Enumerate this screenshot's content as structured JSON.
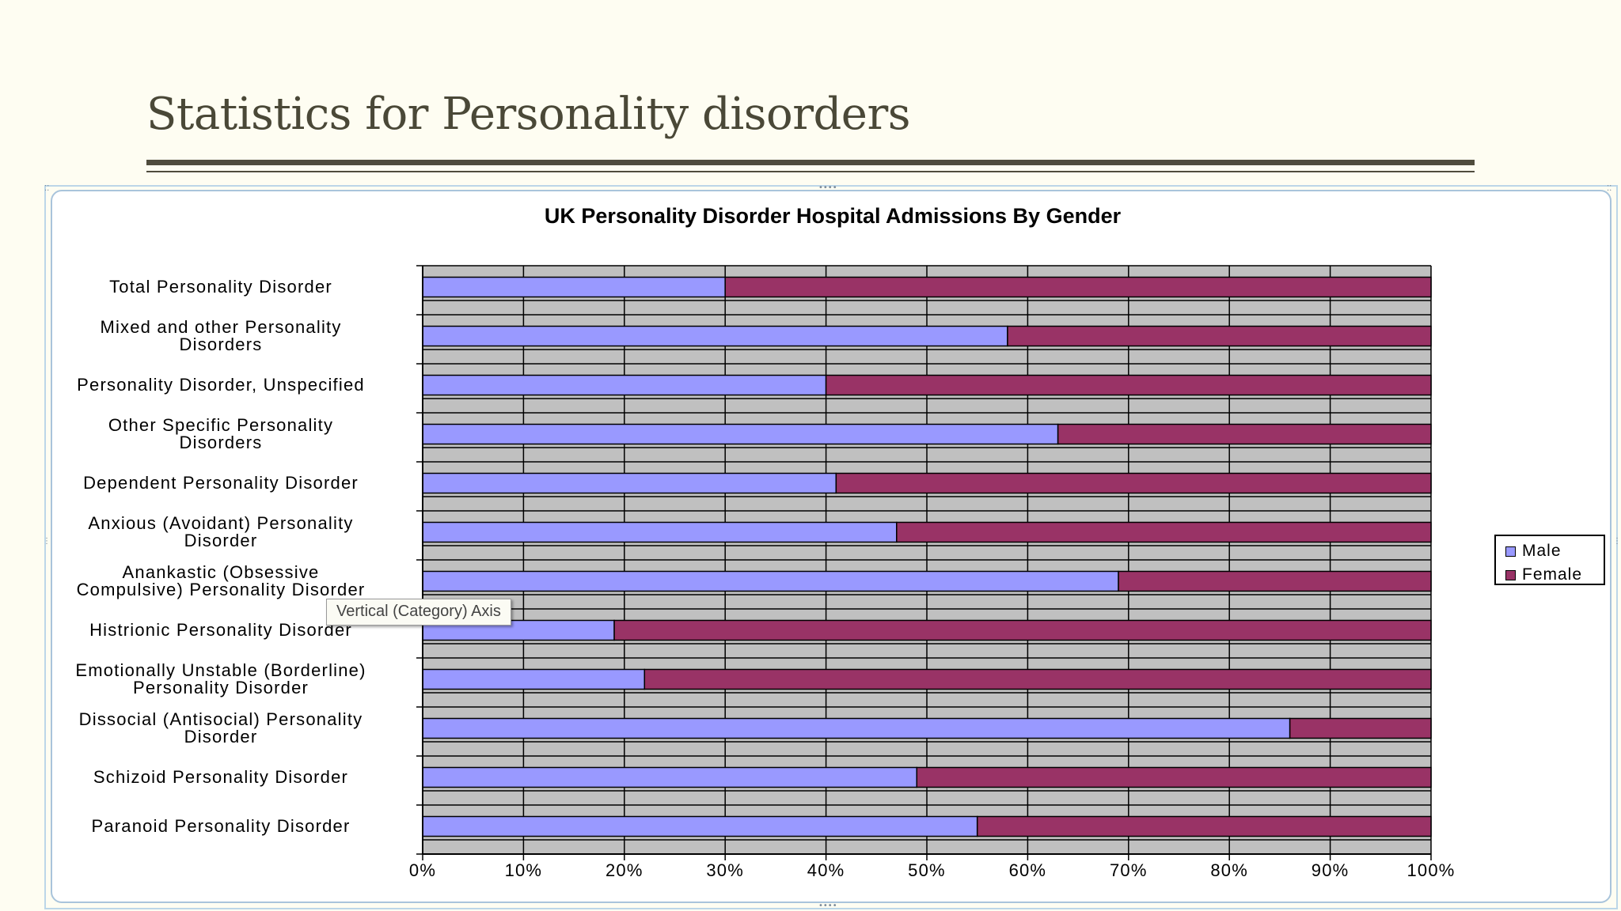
{
  "slide": {
    "title": "Statistics for Personality disorders"
  },
  "tooltip": {
    "text": "Vertical (Category) Axis"
  },
  "legend": {
    "items": [
      {
        "label": "Male",
        "color": "#9999ff"
      },
      {
        "label": "Female",
        "color": "#993366"
      }
    ]
  },
  "colors": {
    "plot_background": "#c0c0c0",
    "gridline": "#000000"
  },
  "chart_data": {
    "type": "bar",
    "orientation": "horizontal",
    "stacked": "percent",
    "title": "UK Personality Disorder Hospital Admissions  By Gender",
    "xlabel": "",
    "ylabel": "",
    "xlim": [
      0,
      100
    ],
    "x_ticks": [
      "0%",
      "10%",
      "20%",
      "30%",
      "40%",
      "50%",
      "60%",
      "70%",
      "80%",
      "90%",
      "100%"
    ],
    "grid": true,
    "legend_position": "right",
    "categories": [
      [
        "Total Personality Disorder"
      ],
      [
        "Mixed and other Personality",
        "Disorders"
      ],
      [
        "Personality Disorder, Unspecified"
      ],
      [
        "Other Specific Personality",
        "Disorders"
      ],
      [
        "Dependent Personality Disorder"
      ],
      [
        "Anxious (Avoidant) Personality",
        "Disorder"
      ],
      [
        "Anankastic (Obsessive",
        "Compulsive) Personality Disorder"
      ],
      [
        "Histrionic Personality Disorder"
      ],
      [
        "Emotionally Unstable (Borderline)",
        "Personality Disorder"
      ],
      [
        "Dissocial (Antisocial) Personality",
        "Disorder"
      ],
      [
        "Schizoid Personality Disorder"
      ],
      [
        "Paranoid Personality Disorder"
      ]
    ],
    "series": [
      {
        "name": "Male",
        "values": [
          30,
          58,
          40,
          63,
          41,
          47,
          69,
          19,
          22,
          86,
          49,
          55
        ]
      },
      {
        "name": "Female",
        "values": [
          70,
          42,
          60,
          37,
          59,
          53,
          31,
          81,
          78,
          14,
          51,
          45
        ]
      }
    ]
  }
}
